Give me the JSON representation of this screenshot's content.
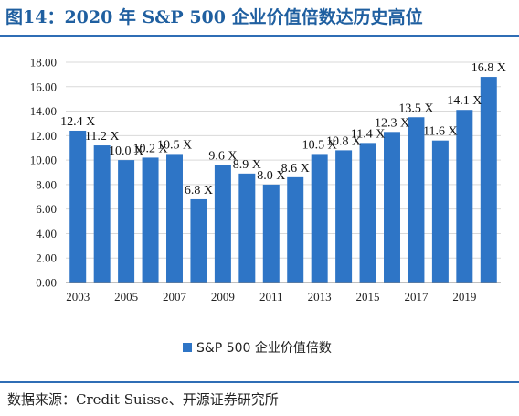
{
  "figure": {
    "title": "图14：2020 年 S&P 500 企业价值倍数达历史高位",
    "source": "数据来源：Credit Suisse、开源证券研究所"
  },
  "colors": {
    "bar": "#2e75c6",
    "grid": "#d9d9d9",
    "axis": "#808080",
    "rule": "#2f6db5"
  },
  "chart_data": {
    "type": "bar",
    "categories": [
      "2003",
      "2004",
      "2005",
      "2006",
      "2007",
      "2008",
      "2009",
      "2010",
      "2011",
      "2012",
      "2013",
      "2014",
      "2015",
      "2016",
      "2017",
      "2018",
      "2019",
      "2020"
    ],
    "tick_labels": [
      "2003",
      "",
      "2005",
      "",
      "2007",
      "",
      "2009",
      "",
      "2011",
      "",
      "2013",
      "",
      "2015",
      "",
      "2017",
      "",
      "2019",
      ""
    ],
    "series": [
      {
        "name": "S&P 500 企业价值倍数",
        "values": [
          12.4,
          11.2,
          10.0,
          10.2,
          10.5,
          6.8,
          9.6,
          8.9,
          8.0,
          8.6,
          10.5,
          10.8,
          11.4,
          12.3,
          13.5,
          11.6,
          14.1,
          16.8
        ]
      }
    ],
    "data_labels": [
      "12.4 X",
      "11.2 X",
      "10.0 X",
      "10.2 X",
      "10.5 X",
      "6.8 X",
      "9.6 X",
      "8.9 X",
      "8.0 X",
      "8.6 X",
      "10.5 X",
      "10.8 X",
      "11.4 X",
      "12.3 X",
      "13.5 X",
      "11.6 X",
      "14.1 X",
      "16.8 X"
    ],
    "y_ticks": [
      "0.00",
      "2.00",
      "4.00",
      "6.00",
      "8.00",
      "10.00",
      "12.00",
      "14.00",
      "16.00",
      "18.00"
    ],
    "ylim": [
      0,
      18
    ],
    "grid": true,
    "legend_position": "bottom"
  }
}
